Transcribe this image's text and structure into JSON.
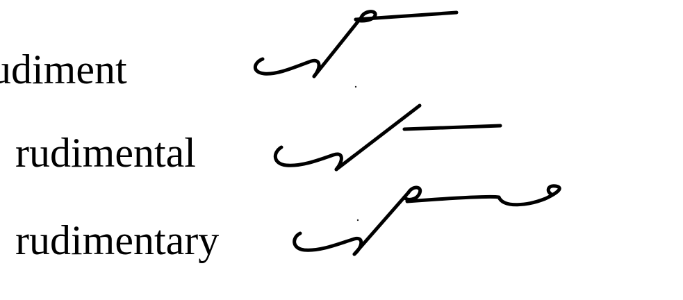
{
  "entries": [
    {
      "word": "udiment"
    },
    {
      "word": "rudimental"
    },
    {
      "word": "rudimentary"
    }
  ],
  "colors": {
    "ink": "#000000",
    "paper": "#ffffff"
  }
}
